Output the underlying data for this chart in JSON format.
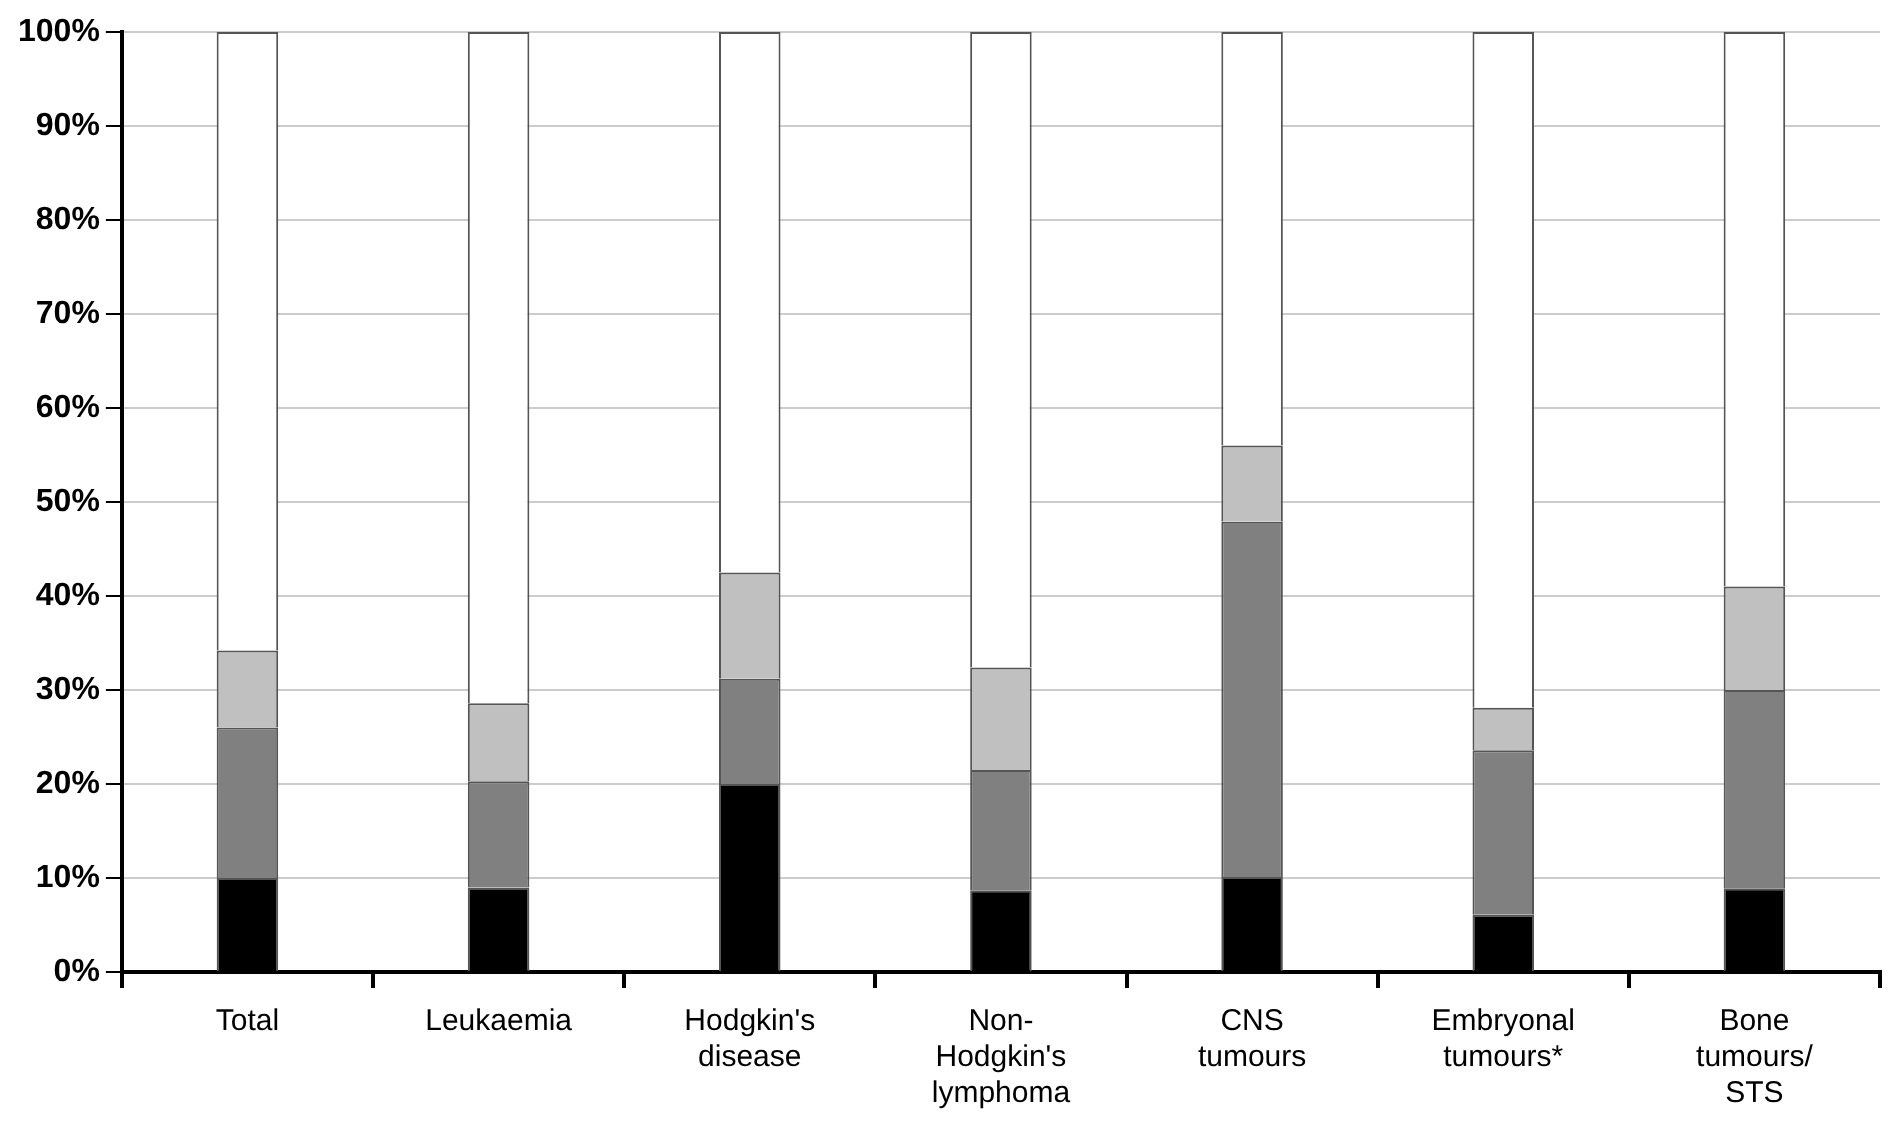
{
  "chart_data": {
    "type": "bar",
    "stacked": true,
    "categories": [
      "Total",
      "Leukaemia",
      "Hodgkin's disease",
      "Non-Hodgkin's lymphoma",
      "CNS tumours",
      "Embryonal tumours*",
      "Bone tumours/STS"
    ],
    "series": [
      {
        "color": "#000000",
        "values": [
          10,
          9,
          20,
          8.7,
          10.1,
          6.1,
          8.9
        ]
      },
      {
        "color": "#808080",
        "values": [
          16,
          11.3,
          11.2,
          12.8,
          37.8,
          17.5,
          21.1
        ]
      },
      {
        "color": "#c0c0c0",
        "values": [
          8.2,
          8.3,
          11.3,
          10.9,
          8.1,
          4.5,
          11
        ]
      },
      {
        "color": "#ffffff",
        "values": [
          65.8,
          71.4,
          57.5,
          67.6,
          44,
          71.9,
          59
        ]
      }
    ],
    "ylim": [
      0,
      100
    ],
    "yticks": [
      {
        "value": 0,
        "label": "0%"
      },
      {
        "value": 10,
        "label": "10%"
      },
      {
        "value": 20,
        "label": "20%"
      },
      {
        "value": 30,
        "label": "30%"
      },
      {
        "value": 40,
        "label": "40%"
      },
      {
        "value": 50,
        "label": "50%"
      },
      {
        "value": 60,
        "label": "60%"
      },
      {
        "value": 70,
        "label": "70%"
      },
      {
        "value": 80,
        "label": "80%"
      },
      {
        "value": 90,
        "label": "90%"
      },
      {
        "value": 100,
        "label": "100%"
      }
    ],
    "grid": "y",
    "legend": false
  }
}
